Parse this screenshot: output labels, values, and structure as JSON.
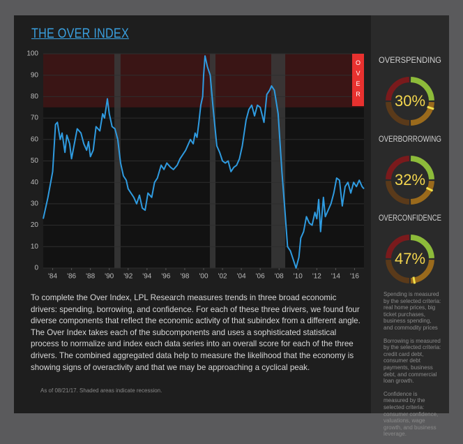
{
  "chart_data": {
    "type": "line",
    "title": "THE OVER INDEX",
    "x": [
      1983.0,
      1983.5,
      1984.0,
      1984.3,
      1984.5,
      1984.8,
      1985.0,
      1985.3,
      1985.5,
      1985.8,
      1986.0,
      1986.3,
      1986.6,
      1987.0,
      1987.3,
      1987.6,
      1987.8,
      1988.0,
      1988.3,
      1988.6,
      1989.0,
      1989.3,
      1989.5,
      1989.8,
      1990.0,
      1990.3,
      1990.6,
      1990.9,
      1991.2,
      1991.5,
      1991.8,
      1992.0,
      1992.3,
      1992.6,
      1992.9,
      1993.2,
      1993.5,
      1993.8,
      1994.1,
      1994.5,
      1994.8,
      1995.1,
      1995.5,
      1995.8,
      1996.1,
      1996.5,
      1996.8,
      1997.2,
      1997.5,
      1997.8,
      1998.1,
      1998.4,
      1998.6,
      1998.9,
      1999.1,
      1999.3,
      1999.5,
      1999.7,
      1999.9,
      2000.0,
      2000.15,
      2000.4,
      2000.7,
      2001.0,
      2001.4,
      2001.7,
      2002.0,
      2002.3,
      2002.6,
      2002.9,
      2003.2,
      2003.5,
      2003.8,
      2004.1,
      2004.5,
      2004.8,
      2005.1,
      2005.4,
      2005.7,
      2006.0,
      2006.4,
      2006.7,
      2007.0,
      2007.2,
      2007.5,
      2007.9,
      2008.3,
      2008.6,
      2008.9,
      2009.2,
      2009.8,
      2010.1,
      2010.3,
      2010.6,
      2010.9,
      2011.2,
      2011.5,
      2011.8,
      2012.0,
      2012.2,
      2012.4,
      2012.7,
      2012.9,
      2013.2,
      2013.5,
      2013.8,
      2014.1,
      2014.4,
      2014.7,
      2015.0,
      2015.3,
      2015.6,
      2015.9,
      2016.2,
      2016.5,
      2016.8,
      2017.0
    ],
    "values": [
      23,
      33,
      45,
      67,
      68,
      60,
      63,
      54,
      62,
      58,
      51,
      58,
      65,
      63,
      58,
      55,
      59,
      52,
      55,
      66,
      64,
      72,
      70,
      79,
      72,
      66,
      65,
      60,
      49,
      43,
      41,
      37,
      35,
      33,
      30,
      34,
      28,
      27,
      35,
      33,
      40,
      42,
      48,
      46,
      49,
      47,
      46,
      48,
      51,
      53,
      55,
      58,
      60,
      58,
      63,
      61,
      68,
      76,
      80,
      90,
      99,
      94,
      90,
      75,
      57,
      54,
      50,
      49,
      50,
      45,
      47,
      48,
      51,
      57,
      69,
      74,
      76,
      71,
      76,
      75,
      68,
      81,
      83,
      85,
      83,
      72,
      45,
      28,
      10,
      8,
      0,
      5,
      14,
      17,
      24,
      21,
      20,
      26,
      23,
      32,
      17,
      33,
      24,
      27,
      30,
      35,
      42,
      41,
      29,
      38,
      40,
      35,
      40,
      38,
      41,
      38,
      37
    ],
    "color": "#2f9be0",
    "xlim": [
      1983,
      2017
    ],
    "xticks": [
      {
        "value": 1984,
        "label": "'84"
      },
      {
        "value": 1986,
        "label": "'86"
      },
      {
        "value": 1988,
        "label": "'88"
      },
      {
        "value": 1990,
        "label": "'90"
      },
      {
        "value": 1992,
        "label": "'92"
      },
      {
        "value": 1994,
        "label": "'94"
      },
      {
        "value": 1996,
        "label": "'96"
      },
      {
        "value": 1998,
        "label": "'98"
      },
      {
        "value": 2000,
        "label": "'00"
      },
      {
        "value": 2002,
        "label": "'02"
      },
      {
        "value": 2004,
        "label": "'04"
      },
      {
        "value": 2006,
        "label": "'06"
      },
      {
        "value": 2008,
        "label": "'08"
      },
      {
        "value": 2010,
        "label": "'10"
      },
      {
        "value": 2012,
        "label": "'12"
      },
      {
        "value": 2014,
        "label": "'14"
      },
      {
        "value": 2016,
        "label": "'16"
      }
    ],
    "ylim": [
      0,
      100
    ],
    "yticks": [
      0,
      10,
      20,
      30,
      40,
      50,
      60,
      70,
      80,
      90,
      100
    ],
    "grid": true,
    "recessions": [
      [
        1990.54,
        1991.2
      ],
      [
        2000.66,
        2001.26
      ],
      [
        2007.17,
        2008.65
      ]
    ],
    "over_threshold": 75,
    "over_label": "OVER"
  },
  "gauges": [
    {
      "label": "OVERSPENDING",
      "value": 30,
      "value_label": "30%"
    },
    {
      "label": "OVERBORROWING",
      "value": 32,
      "value_label": "32%"
    },
    {
      "label": "OVERCONFIDENCE",
      "value": 47,
      "value_label": "47%"
    }
  ],
  "body": "To complete the Over Index, LPL Research measures trends in three broad economic drivers: spending, borrowing, and confidence. For each of these three drivers, we found four diverse components that reflect the economic activity of that subindex from a different angle. The Over Index takes each of the subcomponents and uses a sophisticated statistical process to normalize and index each data series into an overall score for each of the three drivers. The combined aggregated data help to measure the likelihood that the economy is showing signs of overactivity and that we may be approaching a cyclical peak.",
  "footnote": "As of 08/21/17. Shaded areas indicate recession.",
  "notes": [
    "Spending is measured by the selected criteria: real home prices, big ticket purchases, business spending, and commodity prices",
    "Borrowing is measured by the selected criteria: credit card debt, consumer debt payments, business debt, and commercial loan growth.",
    "Confidence is measured by the selected criteria: consumer confidence, valuations, wage growth, and business leverage."
  ]
}
